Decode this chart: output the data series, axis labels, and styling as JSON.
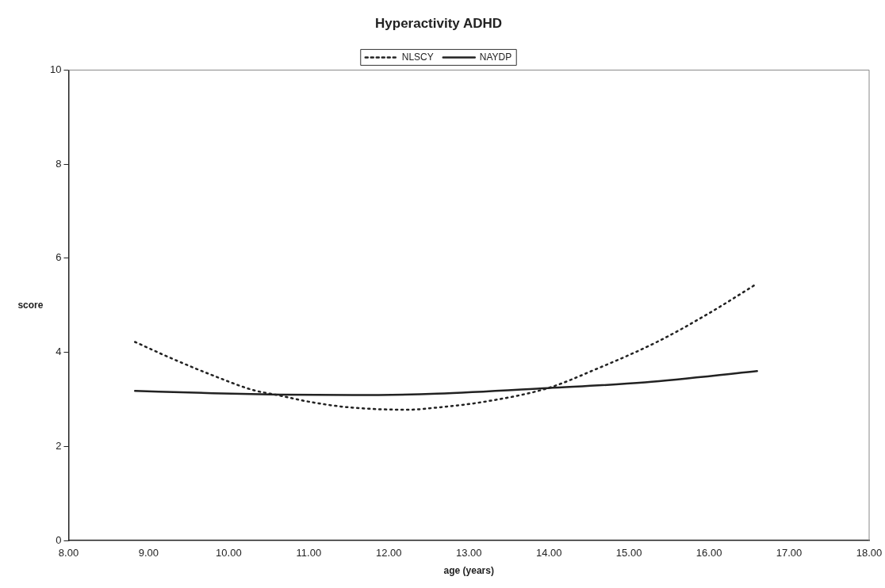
{
  "chart_data": {
    "type": "line",
    "title": "Hyperactivity ADHD",
    "xlabel": "age (years)",
    "ylabel": "score",
    "series": [
      {
        "name": "NLSCY",
        "color": "#222222",
        "line_style": "dotted",
        "x": [
          8.83,
          9.3,
          9.8,
          10.3,
          10.64,
          11.0,
          11.5,
          12.24,
          12.63,
          13.2,
          13.99,
          14.6,
          15.35,
          16.0,
          16.6
        ],
        "values": [
          4.22,
          3.86,
          3.51,
          3.2,
          3.08,
          2.95,
          2.83,
          2.78,
          2.83,
          2.95,
          3.24,
          3.65,
          4.22,
          4.83,
          5.46
        ]
      },
      {
        "name": "NAYDP",
        "color": "#222222",
        "line_style": "solid",
        "x": [
          8.83,
          9.8,
          10.64,
          11.55,
          12.6,
          13.99,
          15.2,
          16.6
        ],
        "values": [
          3.18,
          3.13,
          3.1,
          3.09,
          3.12,
          3.24,
          3.36,
          3.6
        ]
      }
    ],
    "xlim": [
      8,
      18
    ],
    "xticks": [
      {
        "value": 8,
        "label": "8.00"
      },
      {
        "value": 9,
        "label": "9.00"
      },
      {
        "value": 10,
        "label": "10.00"
      },
      {
        "value": 11,
        "label": "11.00"
      },
      {
        "value": 12,
        "label": "12.00"
      },
      {
        "value": 13,
        "label": "13.00"
      },
      {
        "value": 14,
        "label": "14.00"
      },
      {
        "value": 15,
        "label": "15.00"
      },
      {
        "value": 16,
        "label": "16.00"
      },
      {
        "value": 17,
        "label": "17.00"
      },
      {
        "value": 18,
        "label": "18.00"
      }
    ],
    "ylim": [
      0,
      10
    ],
    "yticks": [
      0,
      2,
      4,
      6,
      8,
      10
    ],
    "grid": false,
    "legend": "top",
    "marker": "none"
  }
}
